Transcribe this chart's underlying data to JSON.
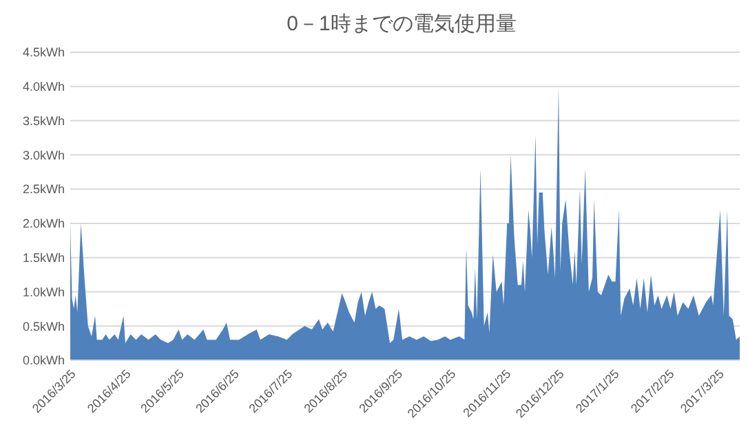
{
  "chart_data": {
    "type": "area",
    "title": "0－1時までの電気使用量",
    "grid": "y",
    "xlim": [
      "2016-03-25",
      "2017-04-06"
    ],
    "ylim": [
      0,
      4.5
    ],
    "xticks": [
      {
        "value": "2016-03-25",
        "label": "2016/3/25"
      },
      {
        "value": "2016-04-25",
        "label": "2016/4/25"
      },
      {
        "value": "2016-05-25",
        "label": "2016/5/25"
      },
      {
        "value": "2016-06-25",
        "label": "2016/6/25"
      },
      {
        "value": "2016-07-25",
        "label": "2016/7/25"
      },
      {
        "value": "2016-08-25",
        "label": "2016/8/25"
      },
      {
        "value": "2016-09-25",
        "label": "2016/9/25"
      },
      {
        "value": "2016-10-25",
        "label": "2016/10/25"
      },
      {
        "value": "2016-11-25",
        "label": "2016/11/25"
      },
      {
        "value": "2016-12-25",
        "label": "2016/12/25"
      },
      {
        "value": "2017-01-25",
        "label": "2017/1/25"
      },
      {
        "value": "2017-02-25",
        "label": "2017/2/25"
      },
      {
        "value": "2017-03-25",
        "label": "2017/3/25"
      }
    ],
    "yticks": [
      {
        "value": 0,
        "label": "0.0kWh"
      },
      {
        "value": 0.5,
        "label": "0.5kWh"
      },
      {
        "value": 1,
        "label": "1.0kWh"
      },
      {
        "value": 1.5,
        "label": "1.5kWh"
      },
      {
        "value": 2,
        "label": "2.0kWh"
      },
      {
        "value": 2.5,
        "label": "2.5kWh"
      },
      {
        "value": 3,
        "label": "3.0kWh"
      },
      {
        "value": 3.5,
        "label": "3.5kWh"
      },
      {
        "value": 4,
        "label": "4.0kWh"
      },
      {
        "value": 4.5,
        "label": "4.5kWh"
      }
    ],
    "x": [
      "2016-03-25",
      "2016-03-26",
      "2016-03-27",
      "2016-03-28",
      "2016-03-29",
      "2016-03-31",
      "2016-04-02",
      "2016-04-04",
      "2016-04-06",
      "2016-04-08",
      "2016-04-09",
      "2016-04-12",
      "2016-04-14",
      "2016-04-16",
      "2016-04-19",
      "2016-04-21",
      "2016-04-24",
      "2016-04-25",
      "2016-04-28",
      "2016-05-01",
      "2016-05-04",
      "2016-05-08",
      "2016-05-12",
      "2016-05-15",
      "2016-05-19",
      "2016-05-22",
      "2016-05-25",
      "2016-05-27",
      "2016-05-30",
      "2016-06-03",
      "2016-06-08",
      "2016-06-10",
      "2016-06-15",
      "2016-06-19",
      "2016-06-21",
      "2016-06-23",
      "2016-06-28",
      "2016-07-03",
      "2016-07-08",
      "2016-07-10",
      "2016-07-15",
      "2016-07-20",
      "2016-07-25",
      "2016-07-28",
      "2016-08-01",
      "2016-08-04",
      "2016-08-08",
      "2016-08-12",
      "2016-08-14",
      "2016-08-17",
      "2016-08-20",
      "2016-08-25",
      "2016-08-27",
      "2016-08-29",
      "2016-09-01",
      "2016-09-03",
      "2016-09-05",
      "2016-09-07",
      "2016-09-09",
      "2016-09-11",
      "2016-09-13",
      "2016-09-15",
      "2016-09-18",
      "2016-09-21",
      "2016-09-23",
      "2016-09-26",
      "2016-09-28",
      "2016-10-02",
      "2016-10-06",
      "2016-10-10",
      "2016-10-14",
      "2016-10-18",
      "2016-10-22",
      "2016-10-25",
      "2016-10-30",
      "2016-11-02",
      "2016-11-03",
      "2016-11-04",
      "2016-11-06",
      "2016-11-07",
      "2016-11-08",
      "2016-11-09",
      "2016-11-11",
      "2016-11-13",
      "2016-11-15",
      "2016-11-16",
      "2016-11-18",
      "2016-11-20",
      "2016-11-21",
      "2016-11-23",
      "2016-11-24",
      "2016-11-26",
      "2016-11-27",
      "2016-11-28",
      "2016-11-30",
      "2016-12-02",
      "2016-12-04",
      "2016-12-05",
      "2016-12-06",
      "2016-12-08",
      "2016-12-09",
      "2016-12-10",
      "2016-12-12",
      "2016-12-13",
      "2016-12-14",
      "2016-12-16",
      "2016-12-17",
      "2016-12-19",
      "2016-12-21",
      "2016-12-22",
      "2016-12-23",
      "2016-12-25",
      "2016-12-26",
      "2016-12-27",
      "2016-12-29",
      "2016-12-31",
      "2017-01-02",
      "2017-01-03",
      "2017-01-04",
      "2017-01-06",
      "2017-01-07",
      "2017-01-09",
      "2017-01-11",
      "2017-01-13",
      "2017-01-14",
      "2017-01-16",
      "2017-01-18",
      "2017-01-20",
      "2017-01-22",
      "2017-01-24",
      "2017-01-26",
      "2017-01-28",
      "2017-01-29",
      "2017-01-31",
      "2017-02-03",
      "2017-02-05",
      "2017-02-07",
      "2017-02-09",
      "2017-02-11",
      "2017-02-13",
      "2017-02-15",
      "2017-02-17",
      "2017-02-19",
      "2017-02-21",
      "2017-02-24",
      "2017-02-26",
      "2017-02-28",
      "2017-03-02",
      "2017-03-05",
      "2017-03-08",
      "2017-03-11",
      "2017-03-14",
      "2017-03-18",
      "2017-03-21",
      "2017-03-22",
      "2017-03-26",
      "2017-03-28",
      "2017-03-30",
      "2017-03-31",
      "2017-04-02",
      "2017-04-04",
      "2017-04-06"
    ],
    "series": [
      {
        "color": "#4f81bd",
        "values": [
          2.0,
          0.9,
          0.75,
          0.95,
          0.7,
          2.0,
          1.2,
          0.5,
          0.35,
          0.65,
          0.3,
          0.3,
          0.38,
          0.3,
          0.38,
          0.3,
          0.65,
          0.25,
          0.38,
          0.3,
          0.38,
          0.3,
          0.38,
          0.3,
          0.25,
          0.3,
          0.45,
          0.3,
          0.38,
          0.3,
          0.45,
          0.3,
          0.3,
          0.45,
          0.55,
          0.3,
          0.3,
          0.38,
          0.45,
          0.3,
          0.38,
          0.35,
          0.3,
          0.38,
          0.45,
          0.5,
          0.45,
          0.6,
          0.45,
          0.55,
          0.42,
          0.98,
          0.85,
          0.7,
          0.55,
          0.85,
          1.0,
          0.65,
          0.85,
          1.0,
          0.75,
          0.8,
          0.75,
          0.25,
          0.3,
          0.75,
          0.3,
          0.35,
          0.3,
          0.35,
          0.28,
          0.3,
          0.35,
          0.3,
          0.35,
          0.3,
          1.65,
          0.8,
          0.7,
          0.6,
          1.35,
          0.6,
          2.8,
          0.5,
          0.7,
          0.4,
          1.55,
          1.0,
          1.05,
          1.15,
          0.8,
          2.0,
          2.0,
          3.0,
          1.8,
          1.1,
          1.1,
          1.45,
          1.0,
          2.2,
          1.9,
          1.5,
          3.3,
          1.7,
          2.45,
          2.45,
          1.9,
          1.25,
          1.95,
          1.6,
          1.2,
          4.0,
          1.3,
          2.0,
          2.35,
          1.6,
          1.1,
          1.6,
          1.1,
          2.5,
          1.4,
          2.8,
          1.0,
          1.2,
          2.35,
          1.0,
          0.95,
          1.1,
          1.25,
          1.15,
          1.15,
          2.2,
          0.65,
          0.9,
          1.05,
          0.8,
          1.2,
          0.75,
          1.2,
          0.7,
          1.25,
          0.8,
          0.95,
          0.75,
          0.95,
          0.75,
          1.0,
          0.65,
          0.85,
          0.75,
          0.95,
          0.65,
          0.85,
          0.95,
          0.8,
          2.2,
          0.65,
          2.2,
          0.65,
          0.6,
          0.3,
          0.35
        ]
      }
    ]
  }
}
